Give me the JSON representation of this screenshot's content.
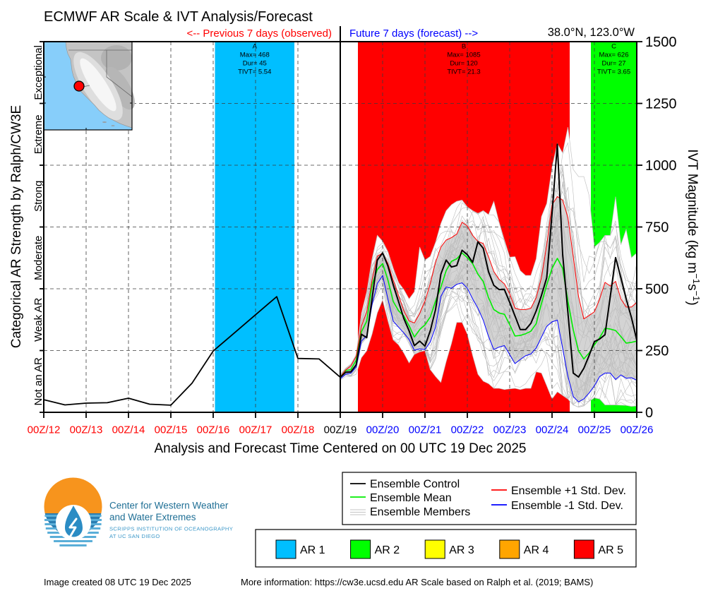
{
  "header": {
    "title": "ECMWF AR Scale & IVT Analysis/Forecast",
    "previous_label": "<-- Previous 7 days (observed)",
    "future_label": "Future 7 days (forecast) -->",
    "location": "38.0°N, 123.0°W"
  },
  "colors": {
    "observed_text": "#ff0000",
    "forecast_text": "#0000ff",
    "analysis_text": "#000000",
    "control": "#000000",
    "mean": "#00ee00",
    "plus_1sd": "#ff0000",
    "minus_1sd": "#0000ff",
    "members": "#bdbdbd",
    "ensemble_core": "#d4d4d4"
  },
  "chart_data": {
    "type": "line",
    "title": "ECMWF AR Scale & IVT Analysis/Forecast",
    "xlabel": "Analysis and Forecast Time Centered on 00 UTC 19 Dec 2025",
    "ylabel_left": "Categorical AR Strength by Ralph/CW3E",
    "ylabel_right": {
      "text": "IVT Magnitude (kg m",
      "exp1": "−1",
      "unit2": "s",
      "exp2": "−1",
      "close": ")"
    },
    "ylim": [
      0,
      1500
    ],
    "yticks": [
      0,
      250,
      500,
      750,
      1000,
      1250,
      1500
    ],
    "ytick_labels": [
      "0",
      "250",
      "500",
      "750",
      "1000",
      "1250",
      "1500"
    ],
    "x_units": "hours since 00Z 12 Dec 2025",
    "x_range_hours": [
      0,
      336
    ],
    "grid": true,
    "xticks": [
      {
        "label": "00Z/12",
        "hour": 0,
        "period": "observed"
      },
      {
        "label": "00Z/13",
        "hour": 24,
        "period": "observed"
      },
      {
        "label": "00Z/14",
        "hour": 48,
        "period": "observed"
      },
      {
        "label": "00Z/15",
        "hour": 72,
        "period": "observed"
      },
      {
        "label": "00Z/16",
        "hour": 96,
        "period": "observed"
      },
      {
        "label": "00Z/17",
        "hour": 120,
        "period": "observed"
      },
      {
        "label": "00Z/18",
        "hour": 144,
        "period": "observed"
      },
      {
        "label": "00Z/19",
        "hour": 168,
        "period": "analysis"
      },
      {
        "label": "00Z/20",
        "hour": 192,
        "period": "forecast"
      },
      {
        "label": "00Z/21",
        "hour": 216,
        "period": "forecast"
      },
      {
        "label": "00Z/22",
        "hour": 240,
        "period": "forecast"
      },
      {
        "label": "00Z/23",
        "hour": 264,
        "period": "forecast"
      },
      {
        "label": "00Z/24",
        "hour": 288,
        "period": "forecast"
      },
      {
        "label": "00Z/25",
        "hour": 312,
        "period": "forecast"
      },
      {
        "label": "00Z/26",
        "hour": 336,
        "period": "forecast"
      }
    ],
    "categories": [
      {
        "label": "Not an AR",
        "range": [
          0,
          250
        ]
      },
      {
        "label": "Weak AR",
        "range": [
          250,
          500
        ]
      },
      {
        "label": "Moderate",
        "range": [
          500,
          750
        ]
      },
      {
        "label": "Strong",
        "range": [
          750,
          1000
        ]
      },
      {
        "label": "Extreme",
        "range": [
          1000,
          1250
        ]
      },
      {
        "label": "Exceptional",
        "range": [
          1250,
          1500
        ]
      }
    ],
    "observed": {
      "start_hour": 0,
      "step_hours": 12,
      "values": [
        51,
        30,
        37,
        39,
        57,
        33,
        29,
        118,
        248,
        321,
        395,
        468,
        218,
        216,
        142
      ]
    },
    "forecast": {
      "start_hour": 168,
      "step_hours": 3,
      "control": [
        142,
        162,
        164,
        192,
        316,
        302,
        459,
        616,
        645,
        592,
        516,
        449,
        380,
        330,
        270,
        288,
        268,
        330,
        416,
        559,
        616,
        588,
        594,
        656,
        638,
        607,
        690,
        664,
        569,
        514,
        497,
        497,
        445,
        390,
        335,
        335,
        360,
        410,
        473,
        545,
        805,
        1085,
        640,
        402,
        159,
        143,
        178,
        230,
        286,
        297,
        314,
        469,
        626,
        545,
        459,
        383,
        292
      ],
      "mean": [
        143,
        169,
        173,
        211,
        326,
        369,
        516,
        578,
        602,
        535,
        449,
        411,
        390,
        350,
        305,
        335,
        354,
        386,
        450,
        507,
        573,
        611,
        621,
        645,
        626,
        602,
        559,
        530,
        464,
        416,
        402,
        397,
        355,
        309,
        311,
        318,
        328,
        359,
        440,
        516,
        583,
        623,
        583,
        449,
        335,
        249,
        216,
        240,
        273,
        302,
        340,
        337,
        331,
        307,
        280,
        283,
        288
      ],
      "plus_1sd": [
        143,
        171,
        188,
        226,
        349,
        407,
        535,
        631,
        645,
        602,
        535,
        473,
        411,
        370,
        362,
        400,
        450,
        521,
        607,
        669,
        697,
        707,
        721,
        769,
        754,
        716,
        692,
        683,
        630,
        570,
        538,
        520,
        480,
        421,
        416,
        416,
        421,
        464,
        545,
        678,
        840,
        873,
        859,
        788,
        630,
        469,
        378,
        392,
        407,
        459,
        526,
        511,
        530,
        459,
        426,
        426,
        445
      ],
      "minus_1sd": [
        135,
        154,
        159,
        183,
        288,
        311,
        435,
        521,
        554,
        459,
        369,
        345,
        321,
        295,
        251,
        257,
        254,
        285,
        345,
        469,
        507,
        502,
        518,
        524,
        502,
        459,
        421,
        373,
        307,
        254,
        264,
        270,
        233,
        197,
        214,
        229,
        236,
        260,
        304,
        348,
        366,
        373,
        259,
        145,
        64,
        42,
        54,
        78,
        107,
        145,
        159,
        159,
        133,
        151,
        138,
        140,
        130
      ],
      "members_max": [
        154,
        178,
        195,
        232,
        400,
        488,
        621,
        716,
        692,
        650,
        583,
        526,
        497,
        459,
        488,
        669,
        616,
        631,
        688,
        764,
        816,
        840,
        854,
        859,
        831,
        816,
        805,
        816,
        800,
        854,
        769,
        697,
        628,
        630,
        573,
        554,
        554,
        621,
        792,
        845,
        992,
        1088,
        1049,
        1154,
        983,
        954,
        954,
        878,
        669,
        688,
        716,
        716,
        873,
        678,
        740,
        626,
        645
      ],
      "members_min": [
        130,
        145,
        145,
        154,
        221,
        249,
        316,
        402,
        455,
        370,
        293,
        273,
        240,
        200,
        235,
        245,
        250,
        173,
        145,
        121,
        205,
        278,
        364,
        364,
        316,
        230,
        154,
        126,
        116,
        97,
        97,
        92,
        95,
        97,
        92,
        97,
        97,
        164,
        159,
        107,
        54,
        83,
        69,
        54,
        30,
        21,
        26,
        45,
        59,
        54,
        30,
        30,
        30,
        29,
        28,
        24,
        26
      ]
    },
    "ar_events": [
      {
        "id": "A",
        "category": "AR 1",
        "start_hour": 97,
        "end_hour": 142,
        "max_ivt": 468,
        "duration_hours": 45,
        "tivt": 5.54,
        "annotation": [
          "A",
          "Max= 468",
          "Dur= 45",
          "TIVT= 5.54"
        ]
      },
      {
        "id": "B",
        "category": "AR 5",
        "start_hour": 178,
        "end_hour": 298,
        "max_ivt": 1085,
        "duration_hours": 120,
        "tivt": 21.3,
        "annotation": [
          "B",
          "Max= 1085",
          "Dur= 120",
          "TIVT= 21.3"
        ]
      },
      {
        "id": "C",
        "category": "AR 2",
        "start_hour": 310,
        "end_hour": 336,
        "max_ivt": 626,
        "duration_hours": 27,
        "tivt": 3.65,
        "annotation": [
          "C",
          "Max= 626",
          "Dur= 27",
          "TIVT= 3.65"
        ]
      }
    ],
    "legend": {
      "placement": "bottom-right",
      "series": [
        {
          "label": "Ensemble Control",
          "color": "#000000"
        },
        {
          "label": "Ensemble Mean",
          "color": "#00ee00"
        },
        {
          "label": "Ensemble Members",
          "color": "#bdbdbd"
        },
        {
          "label": "Ensemble +1 Std. Dev.",
          "color": "#ff0000"
        },
        {
          "label": "Ensemble -1 Std. Dev.",
          "color": "#0000ff"
        }
      ],
      "ar_scale": [
        {
          "label": "AR 1",
          "color": "#00bfff"
        },
        {
          "label": "AR 2",
          "color": "#00ff00"
        },
        {
          "label": "AR 3",
          "color": "#ffff00"
        },
        {
          "label": "AR 4",
          "color": "#ffa500"
        },
        {
          "label": "AR 5",
          "color": "#ff0000"
        }
      ]
    }
  },
  "inset_map": {
    "ocean_color": "#87cefa",
    "marker_color": "#ff0000"
  },
  "logo": {
    "line1": "Center for Western Weather",
    "line2": "and Water Extremes",
    "line3": "SCRIPPS INSTITUTION OF OCEANOGRAPHY",
    "line4": "AT UC SAN DIEGO"
  },
  "footer": {
    "created": "Image created 08 UTC 19 Dec 2025",
    "more_info": "More information: https://cw3e.ucsd.edu AR Scale based on Ralph et al. (2019; BAMS)"
  }
}
